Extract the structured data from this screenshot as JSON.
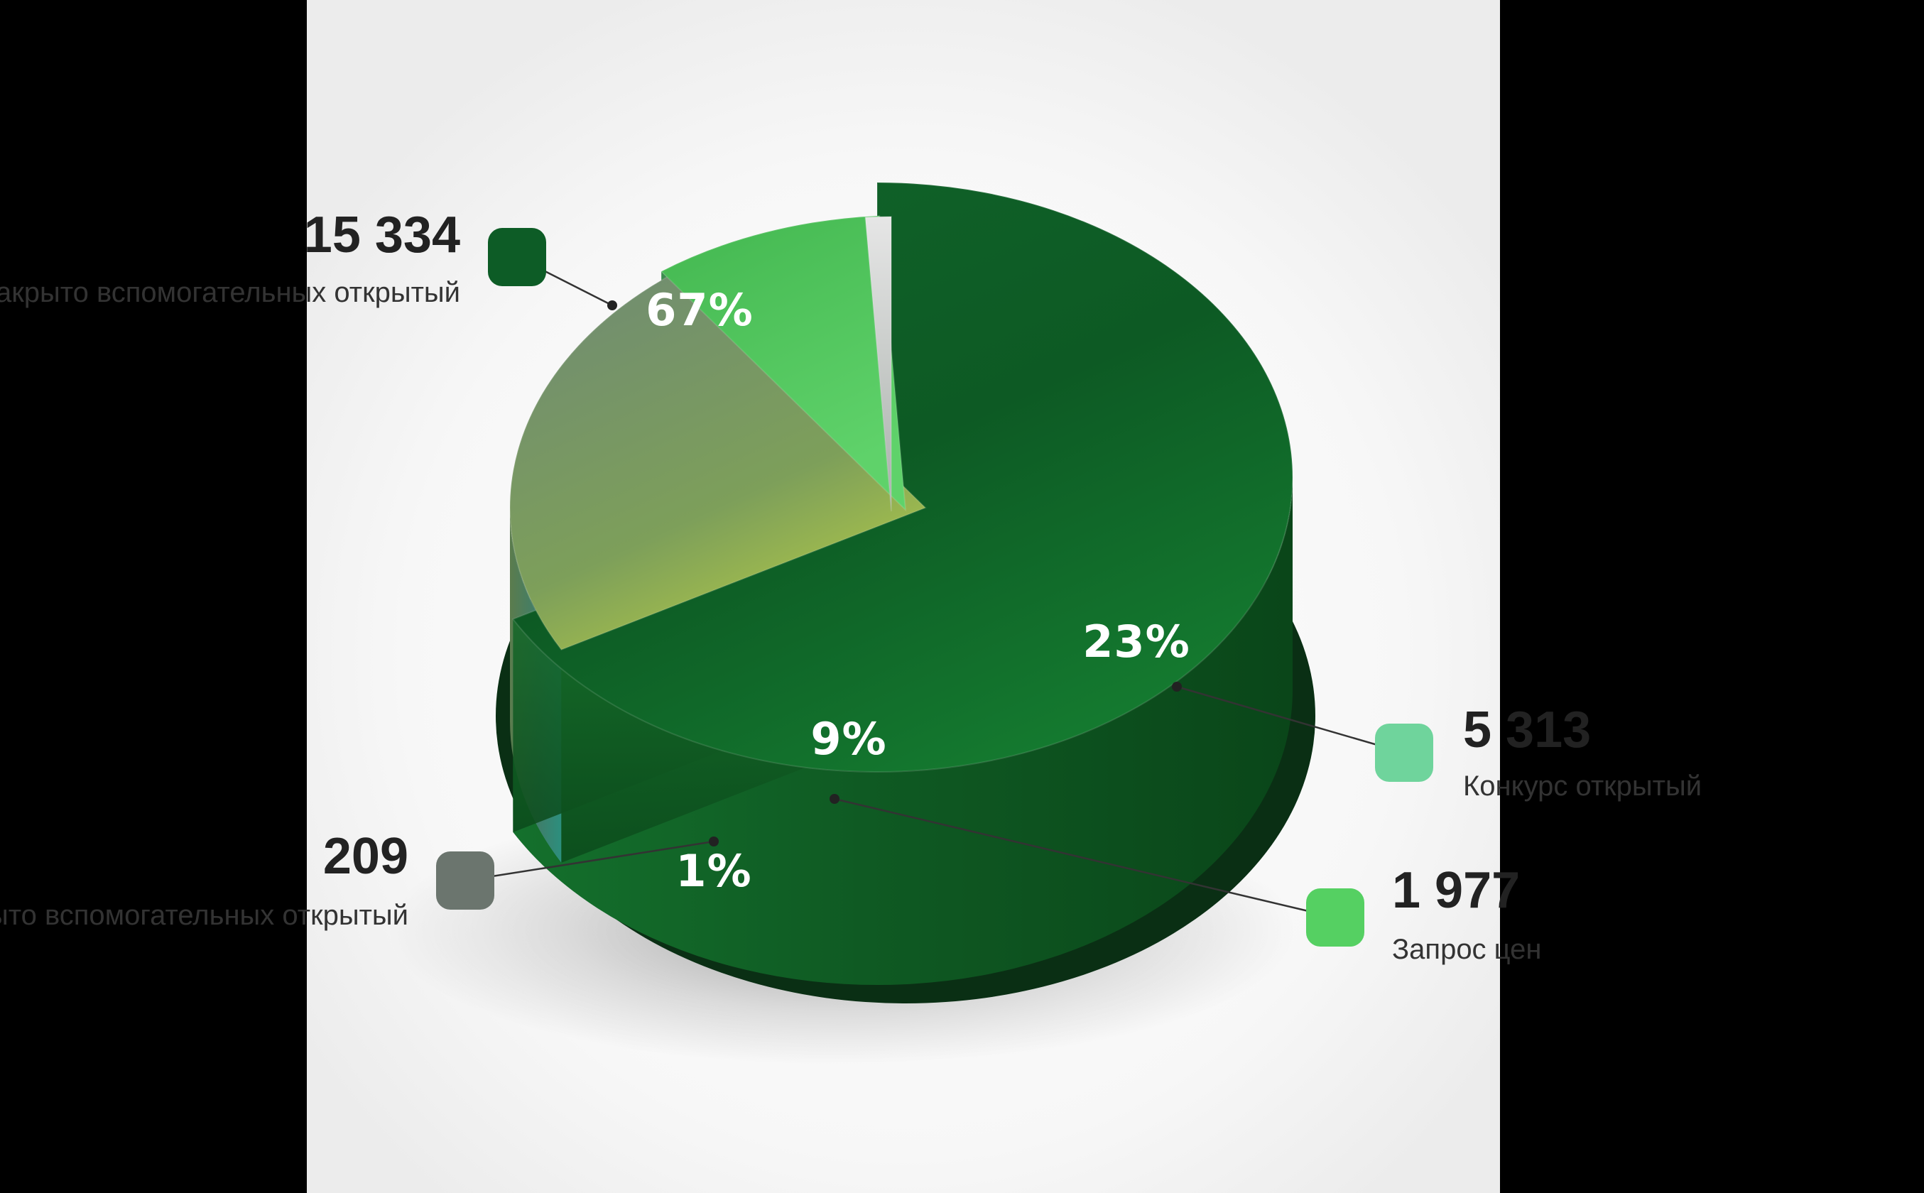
{
  "chart_data": {
    "type": "pie",
    "style": "3d",
    "slices": [
      {
        "value_text": "15 334",
        "percent": 67,
        "percent_text": "67%",
        "caption": "Закрыто вспомогательных открытый",
        "color": "#0d5c26"
      },
      {
        "value_text": "5 313",
        "percent": 23,
        "percent_text": "23%",
        "caption": "Конкурс открытый",
        "color": "#6fd49c"
      },
      {
        "value_text": "1 977",
        "percent": 9,
        "percent_text": "9%",
        "caption": "Запрос цен",
        "color": "#55d062"
      },
      {
        "value_text": "209",
        "percent": 1,
        "percent_text": "1%",
        "caption": "Закрыто вспомогательных открытый",
        "color": "#6b756e"
      }
    ],
    "title": "",
    "legend_position": "around"
  }
}
